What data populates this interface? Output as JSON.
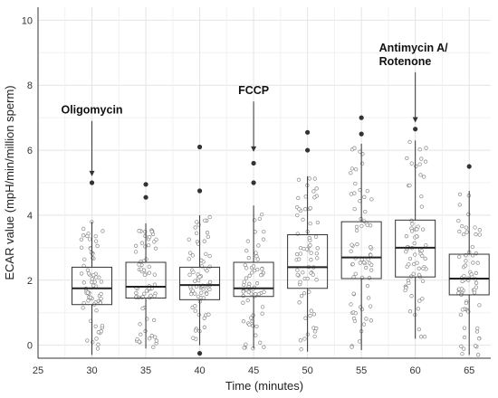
{
  "chart_data": {
    "type": "box",
    "title": "",
    "xlabel": "Time (minutes)",
    "ylabel": "ECAR value (mpH/min/million sperm)",
    "xlim": [
      25,
      67
    ],
    "ylim": [
      -0.4,
      10.4
    ],
    "x_ticks": [
      25,
      30,
      35,
      40,
      45,
      50,
      55,
      60,
      65
    ],
    "y_ticks": [
      0,
      2,
      4,
      6,
      8,
      10
    ],
    "grid": true,
    "categories": [
      30,
      35,
      40,
      45,
      50,
      55,
      60,
      65
    ],
    "boxes": [
      {
        "x": 30,
        "whisker_low": -0.3,
        "q1": 1.25,
        "median": 1.75,
        "q3": 2.4,
        "whisker_high": 3.8,
        "outliers": [
          5.0
        ]
      },
      {
        "x": 35,
        "whisker_low": -0.1,
        "q1": 1.45,
        "median": 1.8,
        "q3": 2.55,
        "whisker_high": 3.75,
        "outliers": [
          4.55,
          4.95
        ]
      },
      {
        "x": 40,
        "whisker_low": 0.0,
        "q1": 1.4,
        "median": 1.85,
        "q3": 2.4,
        "whisker_high": 4.0,
        "outliers": [
          -0.25,
          4.75,
          6.1
        ]
      },
      {
        "x": 45,
        "whisker_low": -0.1,
        "q1": 1.5,
        "median": 1.75,
        "q3": 2.55,
        "whisker_high": 4.3,
        "outliers": [
          5.0,
          5.6
        ]
      },
      {
        "x": 50,
        "whisker_low": -0.2,
        "q1": 1.75,
        "median": 2.4,
        "q3": 3.4,
        "whisker_high": 5.2,
        "outliers": [
          6.0,
          6.55
        ]
      },
      {
        "x": 55,
        "whisker_low": -0.15,
        "q1": 2.05,
        "median": 2.7,
        "q3": 3.8,
        "whisker_high": 6.2,
        "outliers": [
          6.5,
          7.0
        ]
      },
      {
        "x": 60,
        "whisker_low": 0.2,
        "q1": 2.1,
        "median": 3.0,
        "q3": 3.85,
        "whisker_high": 6.3,
        "outliers": [
          6.65
        ]
      },
      {
        "x": 65,
        "whisker_low": -0.3,
        "q1": 1.55,
        "median": 2.05,
        "q3": 2.8,
        "whisker_high": 4.75,
        "outliers": [
          5.5
        ]
      }
    ],
    "annotations": [
      {
        "text": [
          "Oligomycin"
        ],
        "x": 30,
        "arrow_from": 6.9,
        "arrow_to": 5.2
      },
      {
        "text": [
          "FCCP"
        ],
        "x": 45,
        "arrow_from": 7.5,
        "arrow_to": 5.95
      },
      {
        "text": [
          "Antimycin A/",
          "Rotenone"
        ],
        "x": 60,
        "arrow_from": 8.4,
        "arrow_to": 6.85
      }
    ]
  }
}
